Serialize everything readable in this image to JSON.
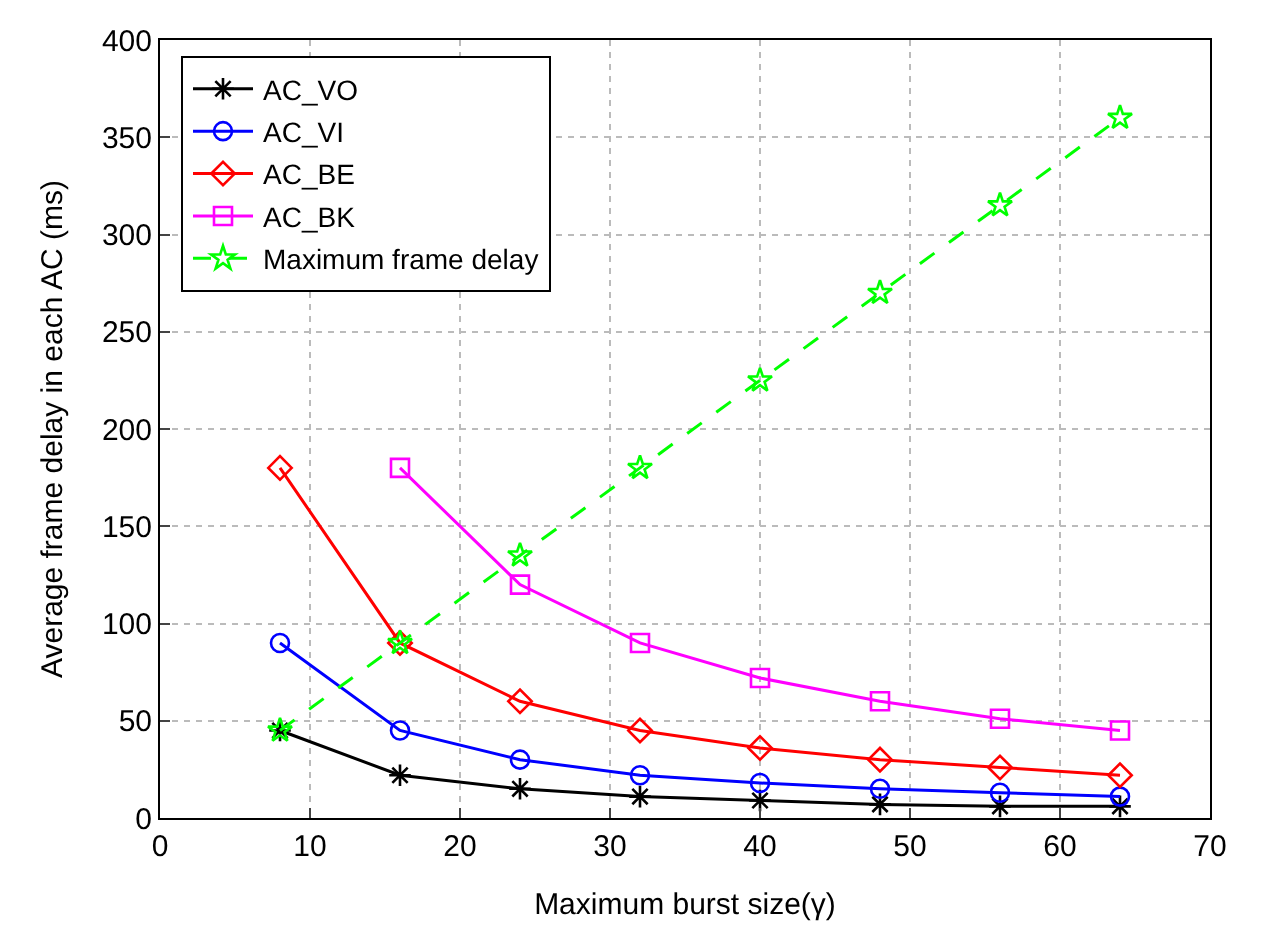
{
  "chart_data": {
    "type": "line",
    "xlabel": "Maximum burst size(γ)",
    "ylabel": "Average frame delay in each AC (ms)",
    "x": [
      8,
      16,
      24,
      32,
      40,
      48,
      56,
      64
    ],
    "series": [
      {
        "name": "AC_VO",
        "color": "#000000",
        "marker": "cross",
        "line_style": "solid",
        "values": [
          45,
          22,
          15,
          11,
          9,
          7,
          6,
          6
        ]
      },
      {
        "name": "AC_VI",
        "color": "#0000ff",
        "marker": "circle",
        "line_style": "solid",
        "values": [
          90,
          45,
          30,
          22,
          18,
          15,
          13,
          11
        ]
      },
      {
        "name": "AC_BE",
        "color": "#ff0000",
        "marker": "diamond",
        "line_style": "solid",
        "values": [
          180,
          90,
          60,
          45,
          36,
          30,
          26,
          22
        ]
      },
      {
        "name": "AC_BK",
        "color": "#ff00ff",
        "marker": "square",
        "line_style": "solid",
        "values": [
          null,
          180,
          120,
          90,
          72,
          60,
          51,
          45
        ]
      },
      {
        "name": "Maximum frame delay",
        "color": "#00ff00",
        "marker": "star",
        "line_style": "dashed",
        "values": [
          45,
          90,
          135,
          180,
          225,
          270,
          315,
          360
        ]
      }
    ],
    "xlim": [
      0,
      70
    ],
    "xticks": [
      0,
      10,
      20,
      30,
      40,
      50,
      60,
      70
    ],
    "ylim": [
      0,
      400
    ],
    "yticks": [
      0,
      50,
      100,
      150,
      200,
      250,
      300,
      350,
      400
    ],
    "grid": true,
    "legend": "top left"
  }
}
